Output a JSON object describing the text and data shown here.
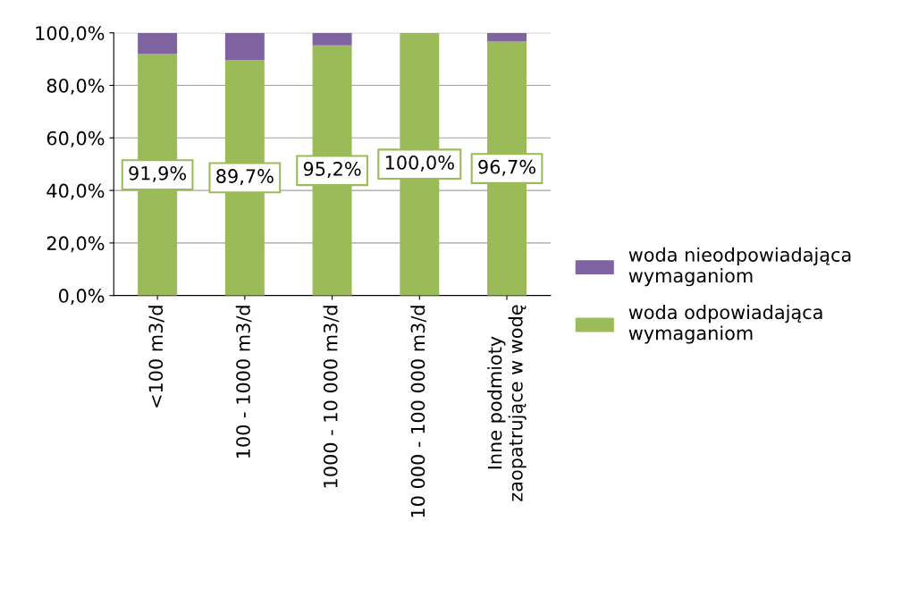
{
  "chart_data": {
    "type": "bar",
    "stacked": true,
    "categories": [
      "<100 m3/d",
      "100 - 1000 m3/d",
      "1000 - 10 000 m3/d",
      "10 000 - 100 000 m3/d",
      "Inne podmioty\nzaopatrujące w wodę"
    ],
    "series": [
      {
        "name": "woda odpowiadająca wymaganiom",
        "color": "#9bbb59",
        "values": [
          91.9,
          89.7,
          95.2,
          100.0,
          96.7
        ],
        "value_labels": [
          "91,9%",
          "89,7%",
          "95,2%",
          "100,0%",
          "96,7%"
        ]
      },
      {
        "name": "woda nieodpowiadająca wymaganiom",
        "color": "#8064a2",
        "values": [
          8.1,
          10.3,
          4.8,
          0.0,
          3.3
        ]
      }
    ],
    "ylim": [
      0,
      100
    ],
    "yticks": [
      {
        "value": 0,
        "label": "0,0%"
      },
      {
        "value": 20,
        "label": "20,0%"
      },
      {
        "value": 40,
        "label": "40,0%"
      },
      {
        "value": 60,
        "label": "60,0%"
      },
      {
        "value": 80,
        "label": "80,0%"
      },
      {
        "value": 100,
        "label": "100,0%"
      }
    ],
    "grid": "y",
    "legend": "right"
  }
}
